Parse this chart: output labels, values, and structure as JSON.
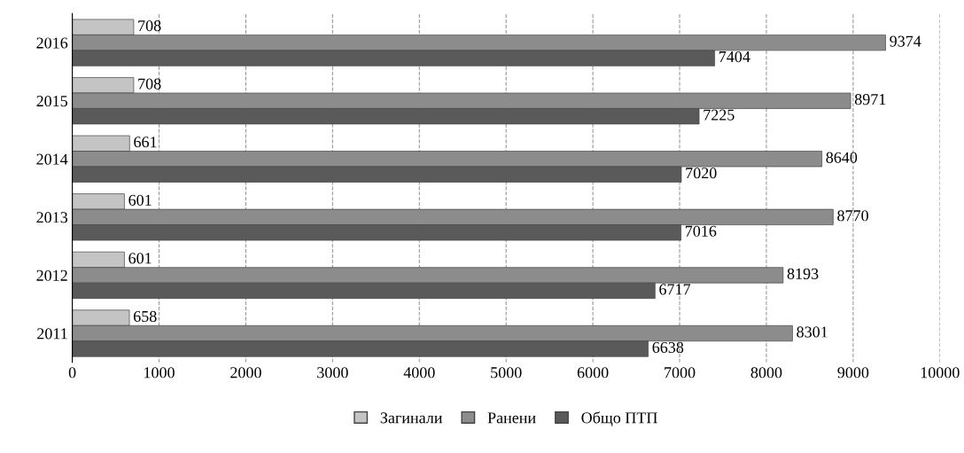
{
  "chart_data": {
    "type": "bar",
    "orientation": "horizontal",
    "categories": [
      "2016",
      "2015",
      "2014",
      "2013",
      "2012",
      "2011"
    ],
    "series": [
      {
        "name": "Загинали",
        "color": "#c4c4c4",
        "values": [
          708,
          708,
          661,
          601,
          601,
          658
        ]
      },
      {
        "name": "Ранени",
        "color": "#8c8c8c",
        "values": [
          9374,
          8971,
          8640,
          8770,
          8193,
          8301
        ]
      },
      {
        "name": "Общо ПТП",
        "color": "#5a5a5a",
        "values": [
          7404,
          7225,
          7020,
          7016,
          6717,
          6638
        ]
      }
    ],
    "xlim": [
      0,
      10000
    ],
    "xticks": [
      0,
      1000,
      2000,
      3000,
      4000,
      5000,
      6000,
      7000,
      8000,
      9000,
      10000
    ],
    "grid": "x",
    "legend": "bottom",
    "data_labels": true
  }
}
